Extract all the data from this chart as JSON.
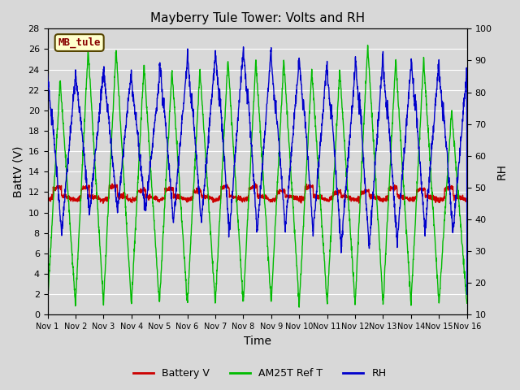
{
  "title": "Mayberry Tule Tower: Volts and RH",
  "xlabel": "Time",
  "ylabel_left": "BattV (V)",
  "ylabel_right": "RH",
  "annotation": "MB_tule",
  "xlim": [
    0,
    15
  ],
  "ylim_left": [
    0,
    28
  ],
  "ylim_right": [
    10,
    100
  ],
  "xtick_labels": [
    "Nov 1",
    "Nov 2",
    "Nov 3",
    "Nov 4",
    "Nov 5",
    "Nov 6",
    "Nov 7",
    "Nov 8",
    "Nov 9",
    "Nov 10",
    "Nov 11",
    "Nov 12",
    "Nov 13",
    "Nov 14",
    "Nov 15",
    "Nov 16"
  ],
  "ytick_left": [
    0,
    2,
    4,
    6,
    8,
    10,
    12,
    14,
    16,
    18,
    20,
    22,
    24,
    26,
    28
  ],
  "ytick_right": [
    10,
    20,
    30,
    40,
    50,
    60,
    70,
    80,
    90,
    100
  ],
  "bg_color": "#d8d8d8",
  "plot_bg_color": "#d8d8d8",
  "grid_color": "#ffffff",
  "battery_color": "#cc0000",
  "am25t_color": "#00bb00",
  "rh_color": "#0000cc",
  "legend_items": [
    "Battery V",
    "AM25T Ref T",
    "RH"
  ],
  "title_fontsize": 11,
  "axis_label_fontsize": 10,
  "tick_fontsize": 8,
  "linewidth": 1.0
}
